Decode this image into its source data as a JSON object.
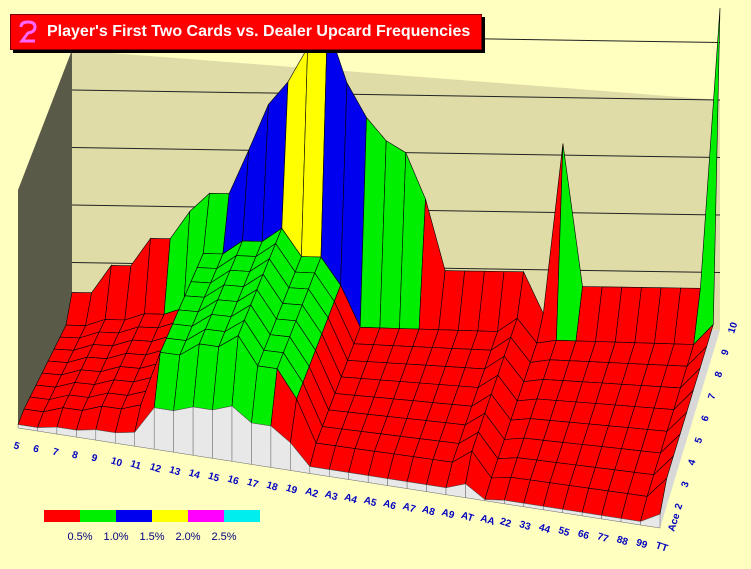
{
  "header": {
    "title": "Player's First Two Cards vs. Dealer Upcard Frequencies"
  },
  "colors": {
    "background": "#ffffc0",
    "wall": "#e0dca8",
    "base": "#d8d8d8",
    "bands": [
      "#ff0000",
      "#00ee00",
      "#0000ee",
      "#ffff00",
      "#ff00ff",
      "#00eeee"
    ]
  },
  "chart_data": {
    "type": "surface",
    "title": "Player's First Two Cards vs. Dealer Upcard Frequencies",
    "unit": "%",
    "categories_x": [
      "5",
      "6",
      "7",
      "8",
      "9",
      "10",
      "11",
      "12",
      "13",
      "14",
      "15",
      "16",
      "17",
      "18",
      "19",
      "A2",
      "A3",
      "A4",
      "A5",
      "A6",
      "A7",
      "A8",
      "A9",
      "AT",
      "AA",
      "22",
      "33",
      "44",
      "55",
      "66",
      "77",
      "88",
      "99",
      "TT"
    ],
    "categories_y": [
      "Ace",
      "2",
      "3",
      "4",
      "5",
      "6",
      "7",
      "8",
      "9",
      "10"
    ],
    "legend": {
      "thresholds": [
        0.5,
        1.0,
        1.5,
        2.0,
        2.5
      ],
      "labels": [
        "0.5%",
        "1.0%",
        "1.5%",
        "2.0%",
        "2.5%"
      ]
    },
    "zlim": [
      0,
      3
    ],
    "series": [
      {
        "x": "5",
        "values": [
          0.03,
          0.06,
          0.06,
          0.06,
          0.06,
          0.06,
          0.06,
          0.06,
          0.06,
          0.24
        ]
      },
      {
        "x": "6",
        "values": [
          0.03,
          0.06,
          0.06,
          0.06,
          0.06,
          0.06,
          0.06,
          0.06,
          0.06,
          0.24
        ]
      },
      {
        "x": "7",
        "values": [
          0.06,
          0.12,
          0.12,
          0.12,
          0.12,
          0.12,
          0.12,
          0.12,
          0.12,
          0.48
        ]
      },
      {
        "x": "8",
        "values": [
          0.06,
          0.12,
          0.12,
          0.12,
          0.12,
          0.12,
          0.12,
          0.12,
          0.12,
          0.48
        ]
      },
      {
        "x": "9",
        "values": [
          0.09,
          0.18,
          0.18,
          0.18,
          0.18,
          0.18,
          0.18,
          0.18,
          0.18,
          0.72
        ]
      },
      {
        "x": "10",
        "values": [
          0.09,
          0.18,
          0.18,
          0.18,
          0.18,
          0.18,
          0.18,
          0.18,
          0.18,
          0.72
        ]
      },
      {
        "x": "11",
        "values": [
          0.12,
          0.24,
          0.24,
          0.24,
          0.24,
          0.24,
          0.24,
          0.24,
          0.24,
          0.96
        ]
      },
      {
        "x": "12",
        "values": [
          0.36,
          0.72,
          0.72,
          0.72,
          0.72,
          0.72,
          0.72,
          0.72,
          0.72,
          1.12
        ]
      },
      {
        "x": "13",
        "values": [
          0.36,
          0.72,
          0.72,
          0.72,
          0.72,
          0.72,
          0.72,
          0.72,
          0.72,
          1.12
        ]
      },
      {
        "x": "14",
        "values": [
          0.42,
          0.84,
          0.84,
          0.84,
          0.84,
          0.84,
          0.84,
          0.84,
          0.84,
          1.5
        ]
      },
      {
        "x": "15",
        "values": [
          0.42,
          0.84,
          0.84,
          0.84,
          0.84,
          0.84,
          0.84,
          0.84,
          0.84,
          1.9
        ]
      },
      {
        "x": "16",
        "values": [
          0.48,
          0.96,
          0.96,
          0.96,
          0.96,
          0.96,
          0.96,
          0.96,
          0.96,
          2.1
        ]
      },
      {
        "x": "17",
        "values": [
          0.36,
          0.72,
          0.72,
          0.72,
          0.72,
          0.72,
          0.72,
          0.72,
          0.72,
          2.4
        ]
      },
      {
        "x": "18",
        "values": [
          0.36,
          0.72,
          0.72,
          0.72,
          0.72,
          0.72,
          0.72,
          0.72,
          0.72,
          2.6
        ]
      },
      {
        "x": "19",
        "values": [
          0.24,
          0.48,
          0.48,
          0.48,
          0.48,
          0.48,
          0.48,
          0.48,
          0.48,
          2.1
        ]
      },
      {
        "x": "A2",
        "values": [
          0.06,
          0.12,
          0.12,
          0.12,
          0.12,
          0.12,
          0.12,
          0.12,
          0.12,
          1.8
        ]
      },
      {
        "x": "A3",
        "values": [
          0.06,
          0.12,
          0.12,
          0.12,
          0.12,
          0.12,
          0.12,
          0.12,
          0.12,
          1.6
        ]
      },
      {
        "x": "A4",
        "values": [
          0.06,
          0.12,
          0.12,
          0.12,
          0.12,
          0.12,
          0.12,
          0.12,
          0.12,
          1.5
        ]
      },
      {
        "x": "A5",
        "values": [
          0.06,
          0.12,
          0.12,
          0.12,
          0.12,
          0.12,
          0.12,
          0.12,
          0.12,
          1.1
        ]
      },
      {
        "x": "A6",
        "values": [
          0.06,
          0.12,
          0.12,
          0.12,
          0.12,
          0.12,
          0.12,
          0.12,
          0.12,
          0.48
        ]
      },
      {
        "x": "A7",
        "values": [
          0.06,
          0.12,
          0.12,
          0.12,
          0.12,
          0.12,
          0.12,
          0.12,
          0.12,
          0.48
        ]
      },
      {
        "x": "A8",
        "values": [
          0.06,
          0.12,
          0.12,
          0.12,
          0.12,
          0.12,
          0.12,
          0.12,
          0.12,
          0.48
        ]
      },
      {
        "x": "A9",
        "values": [
          0.06,
          0.12,
          0.12,
          0.12,
          0.12,
          0.12,
          0.12,
          0.12,
          0.12,
          0.48
        ]
      },
      {
        "x": "AT",
        "values": [
          0.12,
          0.24,
          0.24,
          0.24,
          0.24,
          0.24,
          0.24,
          0.24,
          0.24,
          0.48
        ]
      },
      {
        "x": "AA",
        "values": [
          0.01,
          0.03,
          0.03,
          0.03,
          0.03,
          0.03,
          0.03,
          0.03,
          0.03,
          0.12
        ]
      },
      {
        "x": "22",
        "values": [
          0.03,
          0.06,
          0.06,
          0.06,
          0.06,
          0.06,
          0.06,
          0.06,
          0.06,
          1.6
        ]
      },
      {
        "x": "33",
        "values": [
          0.03,
          0.06,
          0.06,
          0.06,
          0.06,
          0.06,
          0.06,
          0.06,
          0.06,
          0.36
        ]
      },
      {
        "x": "44",
        "values": [
          0.03,
          0.06,
          0.06,
          0.06,
          0.06,
          0.06,
          0.06,
          0.06,
          0.06,
          0.36
        ]
      },
      {
        "x": "55",
        "values": [
          0.03,
          0.06,
          0.06,
          0.06,
          0.06,
          0.06,
          0.06,
          0.06,
          0.06,
          0.36
        ]
      },
      {
        "x": "66",
        "values": [
          0.03,
          0.06,
          0.06,
          0.06,
          0.06,
          0.06,
          0.06,
          0.06,
          0.06,
          0.36
        ]
      },
      {
        "x": "77",
        "values": [
          0.03,
          0.06,
          0.06,
          0.06,
          0.06,
          0.06,
          0.06,
          0.06,
          0.06,
          0.36
        ]
      },
      {
        "x": "88",
        "values": [
          0.03,
          0.06,
          0.06,
          0.06,
          0.06,
          0.06,
          0.06,
          0.06,
          0.06,
          0.36
        ]
      },
      {
        "x": "99",
        "values": [
          0.03,
          0.06,
          0.06,
          0.06,
          0.06,
          0.06,
          0.06,
          0.06,
          0.06,
          0.36
        ]
      },
      {
        "x": "TT",
        "values": [
          0.12,
          0.24,
          0.24,
          0.24,
          0.24,
          0.24,
          0.24,
          0.24,
          0.24,
          2.8
        ]
      }
    ]
  }
}
